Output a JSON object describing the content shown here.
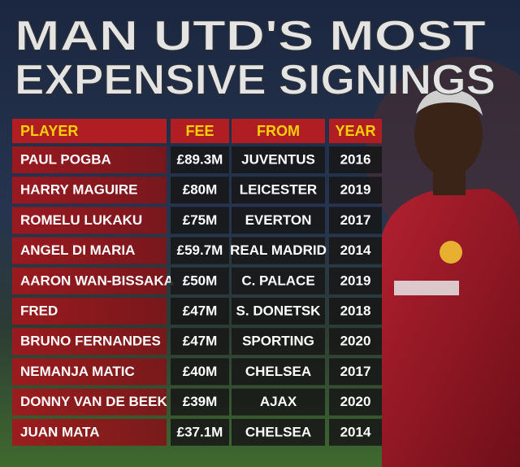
{
  "title": {
    "lines": [
      "MAN UTD'S MOST",
      "EXPENSIVE SIGNINGS"
    ]
  },
  "table": {
    "header": [
      "PLAYER",
      "FEE",
      "FROM",
      "YEAR"
    ],
    "rows": [
      [
        "PAUL POGBA",
        "£89.3M",
        "JUVENTUS",
        "2016"
      ],
      [
        "HARRY MAGUIRE",
        "£80M",
        "LEICESTER",
        "2019"
      ],
      [
        "ROMELU LUKAKU",
        "£75M",
        "EVERTON",
        "2017"
      ],
      [
        "ANGEL DI MARIA",
        "£59.7M",
        "REAL MADRID",
        "2014"
      ],
      [
        "AARON WAN-BISSAKA",
        "£50M",
        "C. PALACE",
        "2019"
      ],
      [
        "FRED",
        "£47M",
        "S. DONETSK",
        "2018"
      ],
      [
        "BRUNO FERNANDES",
        "£47M",
        "SPORTING",
        "2020"
      ],
      [
        "NEMANJA MATIC",
        "£40M",
        "CHELSEA",
        "2017"
      ],
      [
        "DONNY VAN DE BEEK",
        "£39M",
        "AJAX",
        "2020"
      ],
      [
        "JUAN MATA",
        "£37.1M",
        "CHELSEA",
        "2014"
      ]
    ]
  }
}
